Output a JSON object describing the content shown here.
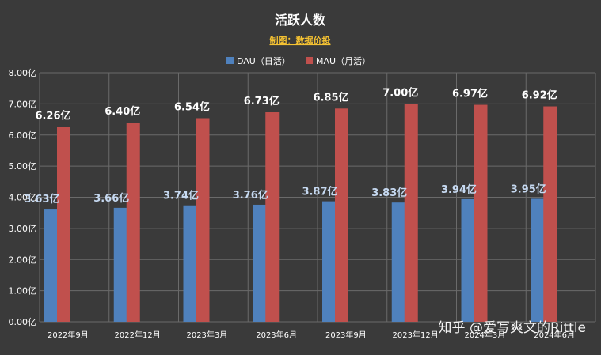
{
  "chart_data": {
    "type": "bar",
    "title": "活跃人数",
    "subtitle": "制图：数据价投",
    "categories": [
      "2022年9月",
      "2022年12月",
      "2023年3月",
      "2023年6月",
      "2023年9月",
      "2023年12月",
      "2024年3月",
      "2024年6月"
    ],
    "series": [
      {
        "name": "DAU（日活）",
        "color": "#4f81bd",
        "label_color": "#c6d9f1",
        "values": [
          3.63,
          3.66,
          3.74,
          3.76,
          3.87,
          3.83,
          3.94,
          3.95
        ],
        "labels": [
          "3.63亿",
          "3.66亿",
          "3.74亿",
          "3.76亿",
          "3.87亿",
          "3.83亿",
          "3.94亿",
          "3.95亿"
        ]
      },
      {
        "name": "MAU（月活）",
        "color": "#c0504d",
        "label_color": "#ffffff",
        "values": [
          6.26,
          6.4,
          6.54,
          6.73,
          6.85,
          7.0,
          6.97,
          6.92
        ],
        "labels": [
          "6.26亿",
          "6.40亿",
          "6.54亿",
          "6.73亿",
          "6.85亿",
          "7.00亿",
          "6.97亿",
          "6.92亿"
        ]
      }
    ],
    "yticks": [
      "0.00亿",
      "1.00亿",
      "2.00亿",
      "3.00亿",
      "4.00亿",
      "5.00亿",
      "6.00亿",
      "7.00亿",
      "8.00亿"
    ],
    "ylim": [
      0,
      8
    ],
    "grid": true,
    "legend_position": "top-center"
  },
  "watermark": "知乎 @爱写爽文的Rittle"
}
